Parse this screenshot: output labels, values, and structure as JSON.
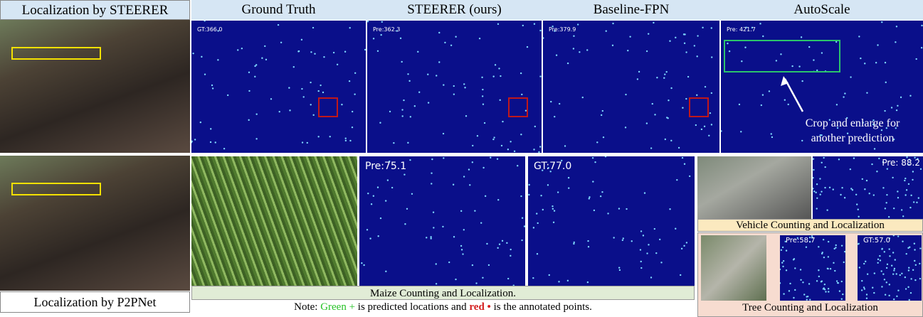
{
  "top_left": {
    "label": "Localization by STEERER"
  },
  "columns": [
    {
      "header": "Ground Truth",
      "count": "GT:366.0"
    },
    {
      "header": "STEERER (ours)",
      "count": "Pre:362.3"
    },
    {
      "header": "Baseline-FPN",
      "count": "Pre:379.9"
    },
    {
      "header": "AutoScale",
      "count": "Pre: 421.7"
    }
  ],
  "annotation": "Crop and enlarge for another prediction",
  "bottom_left": {
    "label": "Localization by P2PNet"
  },
  "maize": {
    "pred": "Pre:75.1",
    "gt": "GT:77.0",
    "caption": "Maize Counting and Localization."
  },
  "note": {
    "prefix": "Note:",
    "green": "Green +",
    "middle": "is predicted locations and",
    "red": "red •",
    "suffix": "is the annotated points."
  },
  "vehicle": {
    "pred": "Pre: 88.2",
    "caption": "Vehicle Counting and Localization"
  },
  "tree": {
    "pred": "Pre:58.7",
    "gt": "GT:57.0",
    "caption": "Tree Counting and Localization"
  }
}
